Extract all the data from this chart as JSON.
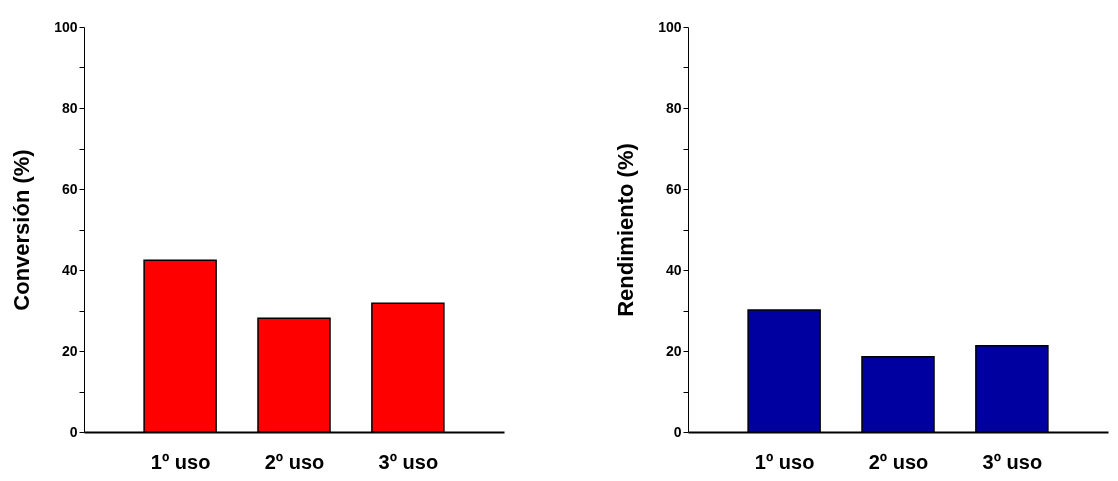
{
  "chart_data": [
    {
      "type": "bar",
      "categories": [
        "1º uso",
        "2º uso",
        "3º uso"
      ],
      "ylabel": "Conversión (%)",
      "color": "#ff0000",
      "values": [
        42.4,
        28.1,
        31.8
      ],
      "ylim": [
        0,
        100
      ],
      "yticks": [
        0,
        {
          "value": 10,
          "label": null
        },
        20,
        {
          "value": 30,
          "label": null
        },
        40,
        {
          "value": 50,
          "label": null
        },
        60,
        {
          "value": 70,
          "label": null
        },
        80,
        {
          "value": 90,
          "label": null
        },
        100
      ],
      "grid": false
    },
    {
      "type": "bar",
      "categories": [
        "1º uso",
        "2º uso",
        "3º uso"
      ],
      "ylabel": "Rendimiento (%)",
      "color": "#0000a0",
      "values": [
        30.1,
        18.6,
        21.3
      ],
      "ylim": [
        0,
        100
      ],
      "yticks": [
        0,
        {
          "value": 10,
          "label": null
        },
        20,
        {
          "value": 30,
          "label": null
        },
        40,
        {
          "value": 50,
          "label": null
        },
        60,
        {
          "value": 70,
          "label": null
        },
        80,
        {
          "value": 90,
          "label": null
        },
        100
      ],
      "grid": false
    }
  ]
}
